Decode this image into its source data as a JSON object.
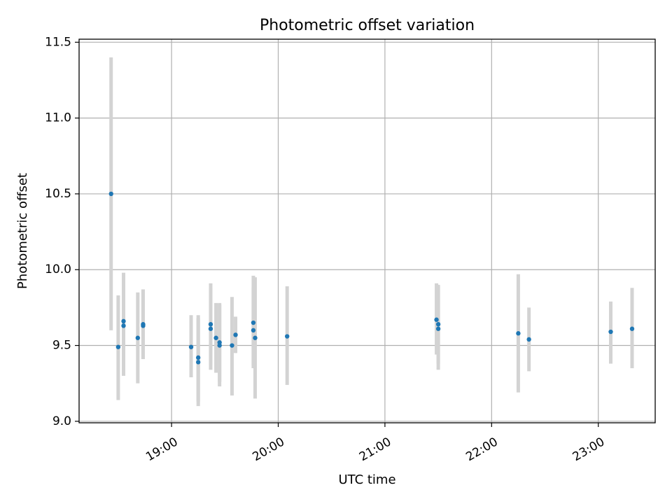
{
  "chart_data": {
    "type": "scatter",
    "title": "Photometric offset variation",
    "xlabel": "UTC time",
    "ylabel": "Photometric offset",
    "xlim": [
      "18:08",
      "23:32"
    ],
    "ylim": [
      8.99,
      11.52
    ],
    "x_ticks": [
      "19:00",
      "20:00",
      "21:00",
      "22:00",
      "23:00"
    ],
    "y_ticks": [
      "9.0",
      "9.5",
      "10.0",
      "10.5",
      "11.0",
      "11.5"
    ],
    "grid": true,
    "error_bar_color": "#d3d3d3",
    "marker_color": "#1f77b4",
    "points": [
      {
        "time": "18:26",
        "y": 10.5,
        "err_low": 9.6,
        "err_high": 11.4
      },
      {
        "time": "18:30",
        "y": 9.49,
        "err_low": 9.14,
        "err_high": 9.83
      },
      {
        "time": "18:33",
        "y": 9.66,
        "err_low": 9.33,
        "err_high": 9.98
      },
      {
        "time": "18:33",
        "y": 9.63,
        "err_low": 9.3,
        "err_high": 9.96
      },
      {
        "time": "18:41",
        "y": 9.55,
        "err_low": 9.25,
        "err_high": 9.85
      },
      {
        "time": "18:44",
        "y": 9.64,
        "err_low": 9.41,
        "err_high": 9.87
      },
      {
        "time": "18:44",
        "y": 9.63,
        "err_low": 9.41,
        "err_high": 9.86
      },
      {
        "time": "19:11",
        "y": 9.49,
        "err_low": 9.29,
        "err_high": 9.7
      },
      {
        "time": "19:15",
        "y": 9.42,
        "err_low": 9.13,
        "err_high": 9.7
      },
      {
        "time": "19:15",
        "y": 9.39,
        "err_low": 9.1,
        "err_high": 9.68
      },
      {
        "time": "19:22",
        "y": 9.64,
        "err_low": 9.37,
        "err_high": 9.91
      },
      {
        "time": "19:22",
        "y": 9.61,
        "err_low": 9.34,
        "err_high": 9.88
      },
      {
        "time": "19:25",
        "y": 9.55,
        "err_low": 9.32,
        "err_high": 9.78
      },
      {
        "time": "19:27",
        "y": 9.52,
        "err_low": 9.26,
        "err_high": 9.78
      },
      {
        "time": "19:27",
        "y": 9.5,
        "err_low": 9.23,
        "err_high": 9.77
      },
      {
        "time": "19:34",
        "y": 9.5,
        "err_low": 9.17,
        "err_high": 9.82
      },
      {
        "time": "19:36",
        "y": 9.57,
        "err_low": 9.45,
        "err_high": 9.69
      },
      {
        "time": "19:46",
        "y": 9.6,
        "err_low": 9.37,
        "err_high": 9.88
      },
      {
        "time": "19:46",
        "y": 9.65,
        "err_low": 9.35,
        "err_high": 9.96
      },
      {
        "time": "19:47",
        "y": 9.55,
        "err_low": 9.15,
        "err_high": 9.95
      },
      {
        "time": "20:05",
        "y": 9.56,
        "err_low": 9.24,
        "err_high": 9.89
      },
      {
        "time": "21:29",
        "y": 9.67,
        "err_low": 9.44,
        "err_high": 9.91
      },
      {
        "time": "21:30",
        "y": 9.64,
        "err_low": 9.38,
        "err_high": 9.9
      },
      {
        "time": "21:30",
        "y": 9.61,
        "err_low": 9.34,
        "err_high": 9.89
      },
      {
        "time": "22:15",
        "y": 9.58,
        "err_low": 9.19,
        "err_high": 9.97
      },
      {
        "time": "22:21",
        "y": 9.54,
        "err_low": 9.33,
        "err_high": 9.75
      },
      {
        "time": "23:07",
        "y": 9.59,
        "err_low": 9.38,
        "err_high": 9.79
      },
      {
        "time": "23:19",
        "y": 9.61,
        "err_low": 9.35,
        "err_high": 9.88
      }
    ]
  }
}
